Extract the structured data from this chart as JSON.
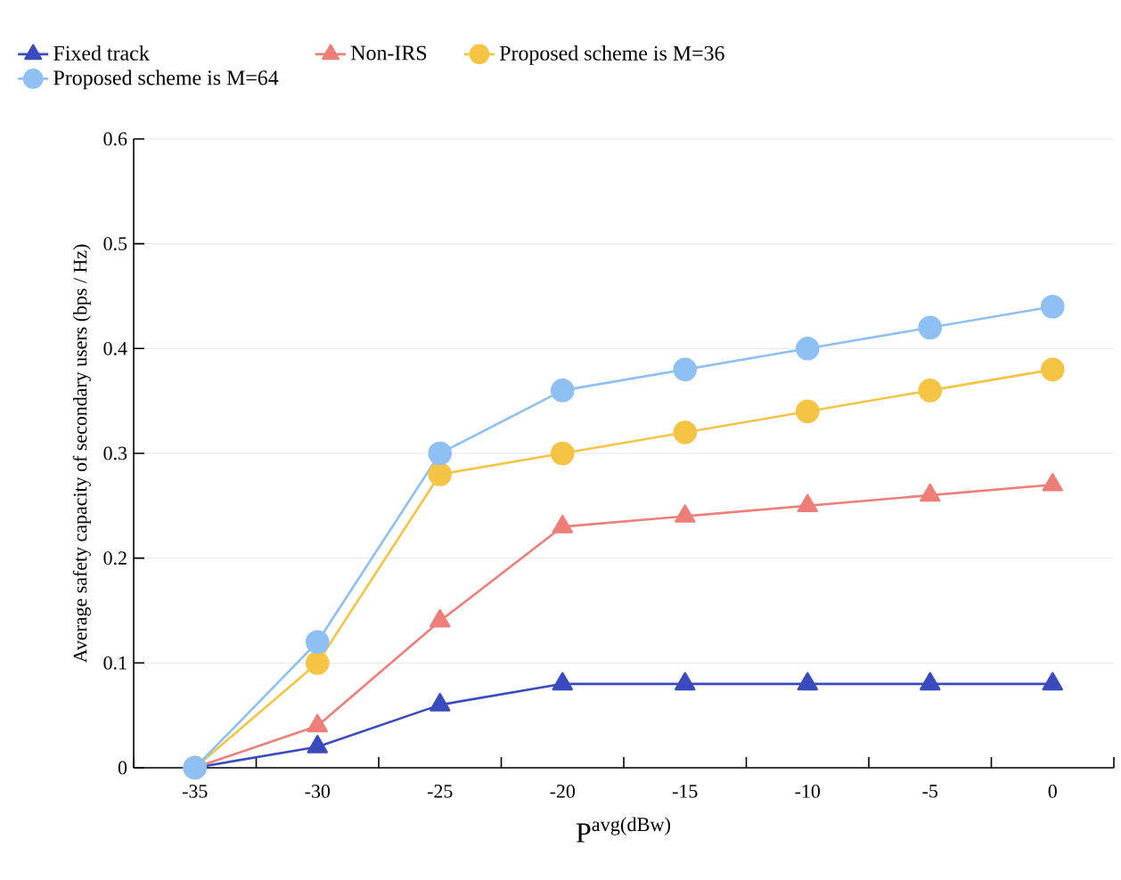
{
  "chart_data": {
    "type": "line",
    "xlabel": "P$^{avg(dBw)}$",
    "ylabel": "Average safety capacity of secondary users (bps / Hz)",
    "categories": [
      "-35",
      "-30",
      "-25",
      "-20",
      "-15",
      "-10",
      "-5",
      "0"
    ],
    "ylim": [
      0,
      0.6
    ],
    "yticks": [
      0,
      0.1,
      0.2,
      0.3,
      0.4,
      0.5,
      0.6
    ],
    "grid": "y",
    "legend": "top left",
    "line_style": "solid",
    "series": [
      {
        "name": "Fixed track",
        "color": "#3a4bbd",
        "marker": "triangle",
        "values": [
          0,
          0.02,
          0.06,
          0.08,
          0.08,
          0.08,
          0.08,
          0.08
        ]
      },
      {
        "name": "Non-IRS",
        "color": "#ee7e78",
        "marker": "triangle",
        "values": [
          0,
          0.04,
          0.14,
          0.23,
          0.24,
          0.25,
          0.26,
          0.27
        ]
      },
      {
        "name": "Proposed scheme is M=36",
        "color": "#f6c445",
        "marker": "circle",
        "values": [
          0,
          0.1,
          0.28,
          0.3,
          0.32,
          0.34,
          0.36,
          0.38
        ]
      },
      {
        "name": "Proposed scheme is M=64",
        "color": "#8fc0f4",
        "marker": "circle",
        "values": [
          0,
          0.12,
          0.3,
          0.36,
          0.38,
          0.4,
          0.42,
          0.44
        ]
      }
    ]
  }
}
